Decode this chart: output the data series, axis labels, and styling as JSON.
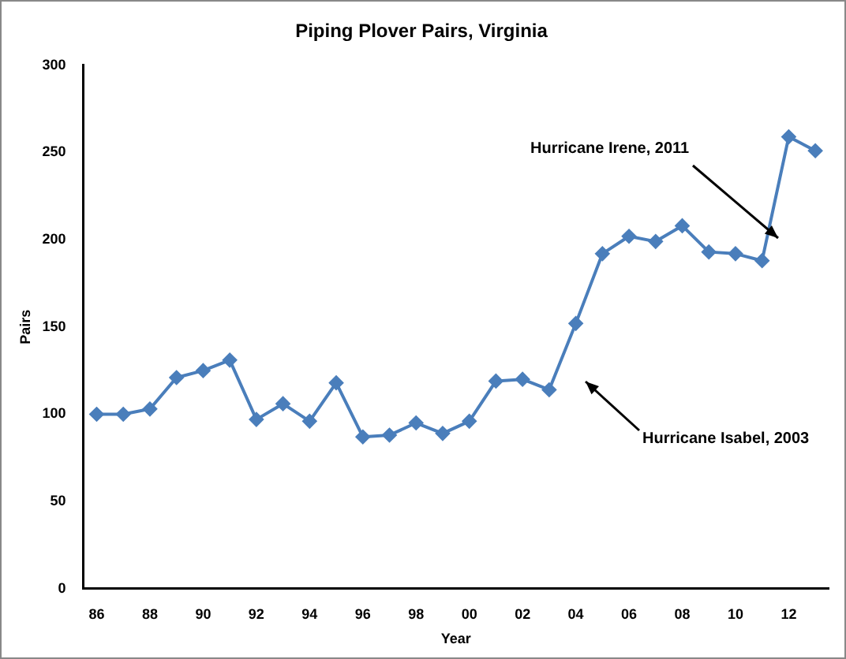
{
  "chart_data": {
    "type": "line",
    "title": "Piping Plover Pairs, Virginia",
    "xlabel": "Year",
    "ylabel": "Pairs",
    "categories": [
      "86",
      null,
      "88",
      null,
      "90",
      null,
      "92",
      null,
      "94",
      null,
      "96",
      null,
      "98",
      null,
      "00",
      null,
      "02",
      null,
      "04",
      null,
      "06",
      null,
      "08",
      null,
      "10",
      null,
      "12",
      null
    ],
    "series": [
      {
        "color": "#4a7ebb",
        "values": [
          100,
          100,
          103,
          121,
          125,
          131,
          97,
          106,
          96,
          118,
          87,
          88,
          95,
          89,
          96,
          119,
          120,
          114,
          152,
          192,
          202,
          199,
          208,
          193,
          192,
          188,
          259,
          251
        ]
      }
    ],
    "ylim": [
      0,
      300
    ],
    "yticks": [
      0,
      50,
      100,
      150,
      200,
      250,
      300
    ],
    "grid": false,
    "legend": false,
    "marker": "diamond",
    "line_style": "solid",
    "annotations": [
      "Hurricane Irene, 2011",
      "Hurricane Isabel, 2003"
    ]
  }
}
